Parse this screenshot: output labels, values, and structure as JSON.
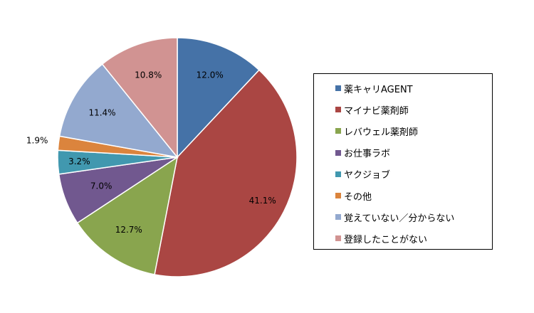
{
  "chart_data": {
    "type": "pie",
    "start_angle_deg": 0,
    "direction": "clockwise",
    "legend_position": "right",
    "slices": [
      {
        "label": "薬キャリAGENT",
        "value": 12.0,
        "value_label": "12.0%",
        "color": "#4572A7"
      },
      {
        "label": "マイナビ薬剤師",
        "value": 41.1,
        "value_label": "41.1%",
        "color": "#AA4643"
      },
      {
        "label": "レバウェル薬剤師",
        "value": 12.7,
        "value_label": "12.7%",
        "color": "#89A54E"
      },
      {
        "label": "お仕事ラボ",
        "value": 7.0,
        "value_label": "7.0%",
        "color": "#71588F"
      },
      {
        "label": "ヤクジョブ",
        "value": 3.2,
        "value_label": "3.2%",
        "color": "#4198AF"
      },
      {
        "label": "その他",
        "value": 1.9,
        "value_label": "1.9%",
        "color": "#DB843D"
      },
      {
        "label": "覚えていない／分からない",
        "value": 11.4,
        "value_label": "11.4%",
        "color": "#93A9CF"
      },
      {
        "label": "登録したことがない",
        "value": 10.8,
        "value_label": "10.8%",
        "color": "#D19392"
      }
    ]
  }
}
